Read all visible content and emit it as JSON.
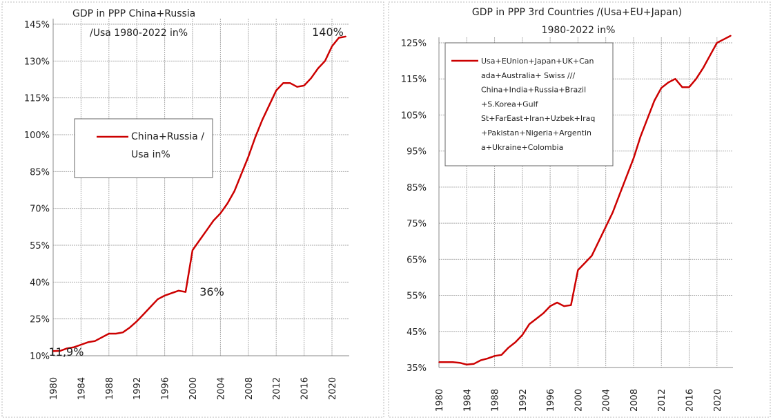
{
  "chart_data": [
    {
      "type": "line",
      "title": [
        "GDP    in PPP    China+Russia",
        "/Usa    1980-2022 in%"
      ],
      "xlabel": "",
      "ylabel": "",
      "ylim": [
        10,
        145
      ],
      "yticks": [
        "10%",
        "25%",
        "40%",
        "55%",
        "70%",
        "85%",
        "100%",
        "115%",
        "130%",
        "145%"
      ],
      "xticks": [
        "1980",
        "1984",
        "1988",
        "1992",
        "1996",
        "2000",
        "2004",
        "2008",
        "2012",
        "2016",
        "2020"
      ],
      "grid": true,
      "legend": {
        "entries": [
          "China+Russia  /",
          "Usa in%"
        ],
        "placement": "middle-left"
      },
      "annotations": [
        {
          "text": "140%",
          "x": 2020,
          "y": 140
        },
        {
          "text": "36%",
          "x": 1999,
          "y": 36
        },
        {
          "text": "11,9%",
          "x": 1980,
          "y": 11.9
        }
      ],
      "series": [
        {
          "name": "China+Russia / Usa in%",
          "color": "#cc0000",
          "x": [
            1980,
            1981,
            1982,
            1983,
            1984,
            1985,
            1986,
            1987,
            1988,
            1989,
            1990,
            1991,
            1992,
            1993,
            1994,
            1995,
            1996,
            1997,
            1998,
            1999,
            2000,
            2001,
            2002,
            2003,
            2004,
            2005,
            2006,
            2007,
            2008,
            2009,
            2010,
            2011,
            2012,
            2013,
            2014,
            2015,
            2016,
            2017,
            2018,
            2019,
            2020,
            2021,
            2022
          ],
          "values": [
            11.9,
            12,
            13,
            13.5,
            14.5,
            15.5,
            16,
            17.5,
            19,
            19,
            19.5,
            21.5,
            24,
            27,
            30,
            33,
            34.5,
            35.5,
            36.5,
            36,
            53,
            57,
            61,
            65,
            68,
            72,
            77,
            84,
            91,
            99,
            106,
            112,
            118,
            121,
            121,
            119.5,
            120,
            123,
            127,
            130,
            136,
            139.5,
            140
          ]
        }
      ]
    },
    {
      "type": "line",
      "title": [
        "GDP  in PPP    3rd Countries /(Usa+EU+Japan)",
        "1980-2022 in%"
      ],
      "xlabel": "",
      "ylabel": "",
      "ylim": [
        35,
        125
      ],
      "yticks": [
        "35%",
        "45%",
        "55%",
        "65%",
        "75%",
        "85%",
        "95%",
        "105%",
        "115%",
        "125%"
      ],
      "xticks": [
        "1980",
        "1984",
        "1988",
        "1992",
        "1996",
        "2000",
        "2004",
        "2008",
        "2012",
        "2016",
        "2020"
      ],
      "grid": true,
      "legend": {
        "entries": [
          "Usa+EUnion+Japan+UK+Can",
          "ada+Australia+ Swiss ///",
          "China+India+Russia+Brazil",
          "+S.Korea+Gulf",
          "St+FarEast+Iran+Uzbek+Iraq",
          "+Pakistan+Nigeria+Argentin",
          "a+Ukraine+Colombia"
        ],
        "placement": "top-left"
      },
      "series": [
        {
          "name": "3rd Countries / (Usa+EU+Japan)",
          "color": "#cc0000",
          "x": [
            1980,
            1981,
            1982,
            1983,
            1984,
            1985,
            1986,
            1987,
            1988,
            1989,
            1990,
            1991,
            1992,
            1993,
            1994,
            1995,
            1996,
            1997,
            1998,
            1999,
            2000,
            2001,
            2002,
            2003,
            2004,
            2005,
            2006,
            2007,
            2008,
            2009,
            2010,
            2011,
            2012,
            2013,
            2014,
            2015,
            2016,
            2017,
            2018,
            2019,
            2020,
            2021,
            2022
          ],
          "values": [
            36.5,
            36.5,
            36.5,
            36.3,
            35.8,
            36,
            37,
            37.5,
            38.2,
            38.5,
            40.5,
            42,
            44,
            47,
            48.5,
            50,
            52,
            53,
            52,
            52.3,
            62,
            64,
            66,
            70,
            74,
            78,
            83,
            88,
            93,
            99,
            104,
            109,
            112.5,
            114,
            115,
            112.7,
            112.7,
            115,
            118,
            121.5,
            125,
            126,
            127
          ]
        }
      ]
    }
  ]
}
